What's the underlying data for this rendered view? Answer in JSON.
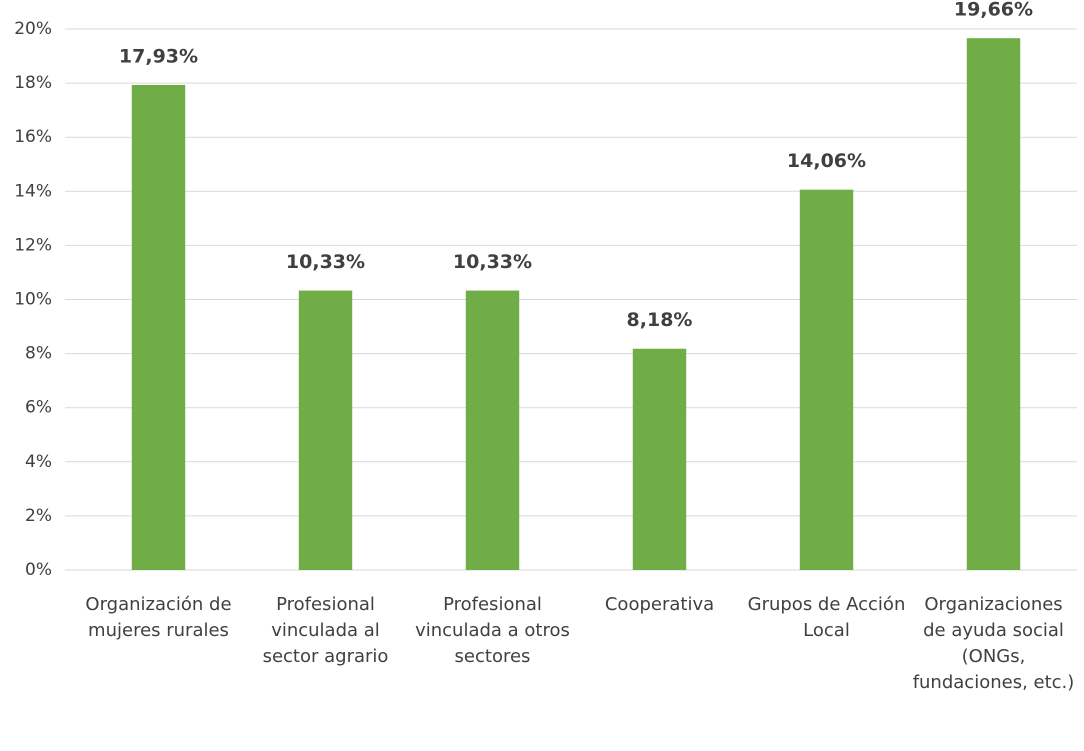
{
  "chart_data": {
    "type": "bar",
    "categories": [
      "Organización de mujeres rurales",
      "Profesional vinculada al sector agrario",
      "Profesional vinculada a otros sectores",
      "Cooperativa",
      "Grupos de Acción Local",
      "Organizaciones de ayuda social (ONGs, fundaciones, etc.)"
    ],
    "values": [
      17.93,
      10.33,
      10.33,
      8.18,
      14.06,
      19.66
    ],
    "value_labels": [
      "17,93%",
      "10,33%",
      "10,33%",
      "8,18%",
      "14,06%",
      "19,66%"
    ],
    "color": "#70ad47",
    "ylim": [
      0,
      20
    ],
    "yticks": [
      {
        "value": 0,
        "label": "0%"
      },
      {
        "value": 2,
        "label": "2%"
      },
      {
        "value": 4,
        "label": "4%"
      },
      {
        "value": 6,
        "label": "6%"
      },
      {
        "value": 8,
        "label": "8%"
      },
      {
        "value": 10,
        "label": "10%"
      },
      {
        "value": 12,
        "label": "12%"
      },
      {
        "value": 14,
        "label": "14%"
      },
      {
        "value": 16,
        "label": "16%"
      },
      {
        "value": 18,
        "label": "18%"
      },
      {
        "value": 20,
        "label": "20%"
      }
    ],
    "grid": true
  }
}
